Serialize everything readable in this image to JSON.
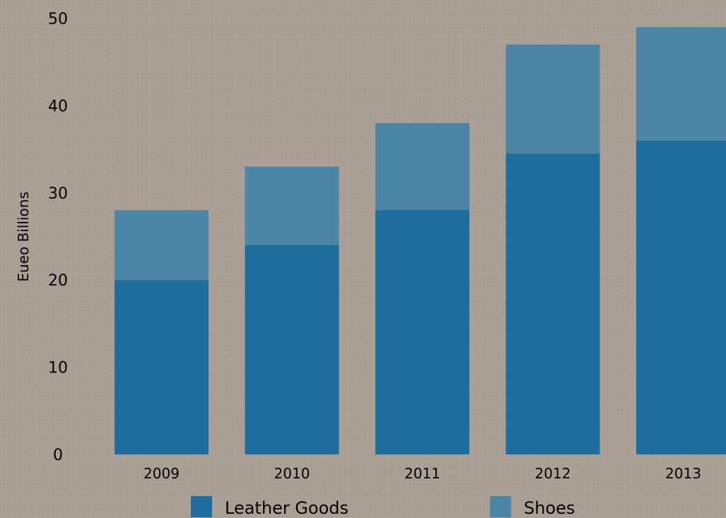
{
  "chart_data": {
    "type": "bar",
    "stacked": true,
    "categories": [
      "2009",
      "2010",
      "2011",
      "2012",
      "2013"
    ],
    "series": [
      {
        "name": "Leather Goods",
        "color": "#1d6e9e",
        "values": [
          20,
          24,
          28,
          34.5,
          36
        ]
      },
      {
        "name": "Shoes",
        "color": "#4b86a6",
        "values": [
          8,
          9,
          10,
          12.5,
          13
        ]
      }
    ],
    "ylabel": "Eueo Billions",
    "ylim": [
      0,
      50
    ],
    "yticks": [
      0,
      10,
      20,
      30,
      40,
      50
    ],
    "grid": false,
    "legend_position": "bottom"
  }
}
